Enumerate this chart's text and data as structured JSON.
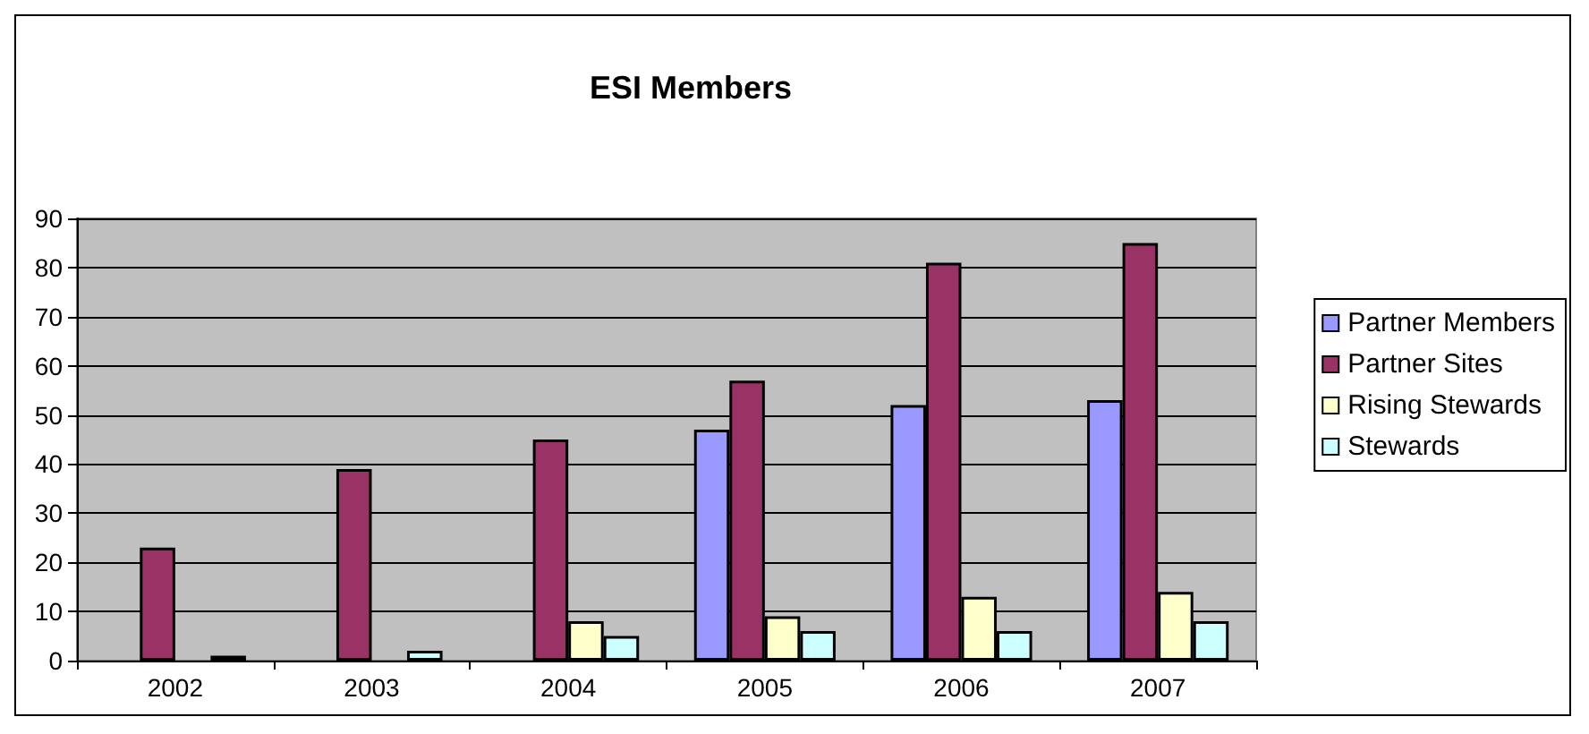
{
  "chart_data": {
    "type": "bar",
    "title": "ESI Members",
    "categories": [
      "2002",
      "2003",
      "2004",
      "2005",
      "2006",
      "2007"
    ],
    "series": [
      {
        "name": "Partner Members",
        "color": "#9999ff",
        "values": [
          null,
          null,
          null,
          47,
          52,
          53
        ]
      },
      {
        "name": "Partner Sites",
        "color": "#993366",
        "values": [
          23,
          39,
          45,
          57,
          81,
          85
        ]
      },
      {
        "name": "Rising Stewards",
        "color": "#ffffcc",
        "values": [
          null,
          null,
          8,
          9,
          13,
          14
        ]
      },
      {
        "name": "Stewards",
        "color": "#ccffff",
        "values": [
          1,
          2,
          5,
          6,
          6,
          8
        ]
      }
    ],
    "ylim": [
      0,
      90
    ],
    "yticks": [
      0,
      10,
      20,
      30,
      40,
      50,
      60,
      70,
      80,
      90
    ],
    "grid": "y",
    "legend": "right"
  }
}
